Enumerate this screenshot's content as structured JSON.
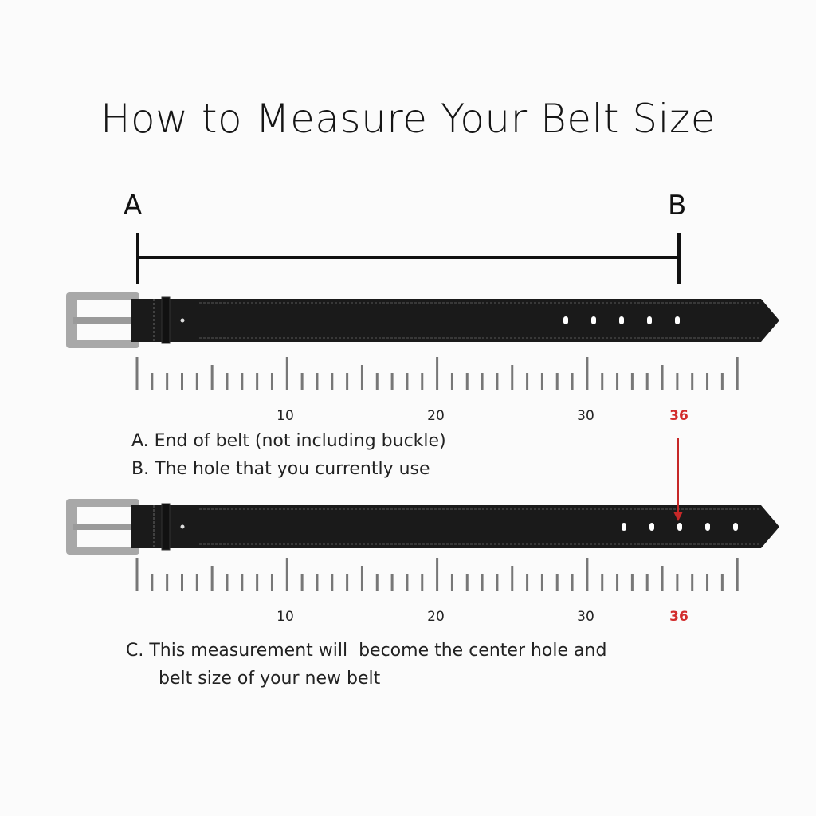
{
  "title": "How to Measure Your Belt Size",
  "point_a": "A",
  "point_b": "B",
  "ruler_labels": [
    "10",
    "20",
    "30",
    "36"
  ],
  "caption_a": "A. End of belt (not including buckle)",
  "caption_b": "B. The hole that you currently use",
  "caption_c_line1": "C. This measurement will  become the center hole and",
  "caption_c_line2": "belt size of your new belt",
  "colors": {
    "highlight": "#d22c2c",
    "belt": "#1a1a1a",
    "tick": "#777777"
  }
}
